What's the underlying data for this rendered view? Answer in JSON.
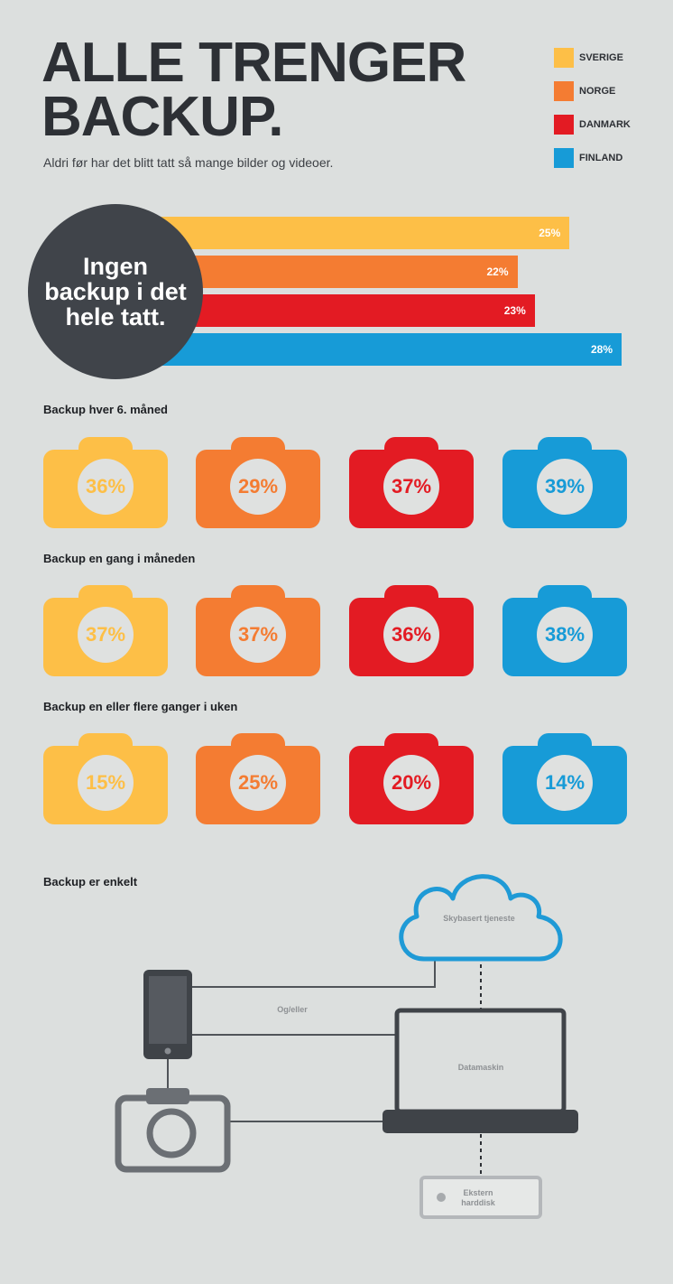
{
  "header": {
    "title_line1": "ALLE TRENGER",
    "title_line2": "BACKUP.",
    "subtitle": "Aldri før har det blitt tatt så mange bilder og videoer."
  },
  "legend": [
    {
      "label": "SVERIGE",
      "color": "#fdbf47"
    },
    {
      "label": "NORGE",
      "color": "#f47c32"
    },
    {
      "label": "DANMARK",
      "color": "#e31b23"
    },
    {
      "label": "FINLAND",
      "color": "#179bd7"
    }
  ],
  "no_backup": {
    "label": "Ingen backup i det hele tatt."
  },
  "chart_data": [
    {
      "type": "bar",
      "orientation": "horizontal",
      "title": "Ingen backup i det hele tatt.",
      "categories": [
        "SVERIGE",
        "NORGE",
        "DANMARK",
        "FINLAND"
      ],
      "values": [
        25,
        22,
        23,
        28
      ],
      "labels": [
        "25%",
        "22%",
        "23%",
        "28%"
      ],
      "colors": [
        "#fdbf47",
        "#f47c32",
        "#e31b23",
        "#179bd7"
      ],
      "unit": "%"
    },
    {
      "type": "table",
      "title": "Backup hver 6. måned",
      "categories": [
        "SVERIGE",
        "NORGE",
        "DANMARK",
        "FINLAND"
      ],
      "values": [
        36,
        29,
        37,
        39
      ],
      "labels": [
        "36%",
        "29%",
        "37%",
        "39%"
      ],
      "colors": [
        "#fdbf47",
        "#f47c32",
        "#e31b23",
        "#179bd7"
      ]
    },
    {
      "type": "table",
      "title": "Backup en gang i måneden",
      "categories": [
        "SVERIGE",
        "NORGE",
        "DANMARK",
        "FINLAND"
      ],
      "values": [
        37,
        37,
        36,
        38
      ],
      "labels": [
        "37%",
        "37%",
        "36%",
        "38%"
      ],
      "colors": [
        "#fdbf47",
        "#f47c32",
        "#e31b23",
        "#179bd7"
      ]
    },
    {
      "type": "table",
      "title": "Backup en eller flere ganger i uken",
      "categories": [
        "SVERIGE",
        "NORGE",
        "DANMARK",
        "FINLAND"
      ],
      "values": [
        15,
        25,
        20,
        14
      ],
      "labels": [
        "15%",
        "25%",
        "20%",
        "14%"
      ],
      "colors": [
        "#fdbf47",
        "#f47c32",
        "#e31b23",
        "#179bd7"
      ]
    }
  ],
  "diagram": {
    "title": "Backup er enkelt",
    "cloud_label": "Skybasert tjeneste",
    "connector_label": "Og/eller",
    "computer_label": "Datamaskin",
    "harddisk_label_line1": "Ekstern",
    "harddisk_label_line2": "harddisk",
    "cloud_icon": "cloud-icon",
    "phone_icon": "smartphone-icon",
    "camera_icon": "camera-icon",
    "laptop_icon": "laptop-icon",
    "harddisk_icon": "harddisk-icon"
  }
}
